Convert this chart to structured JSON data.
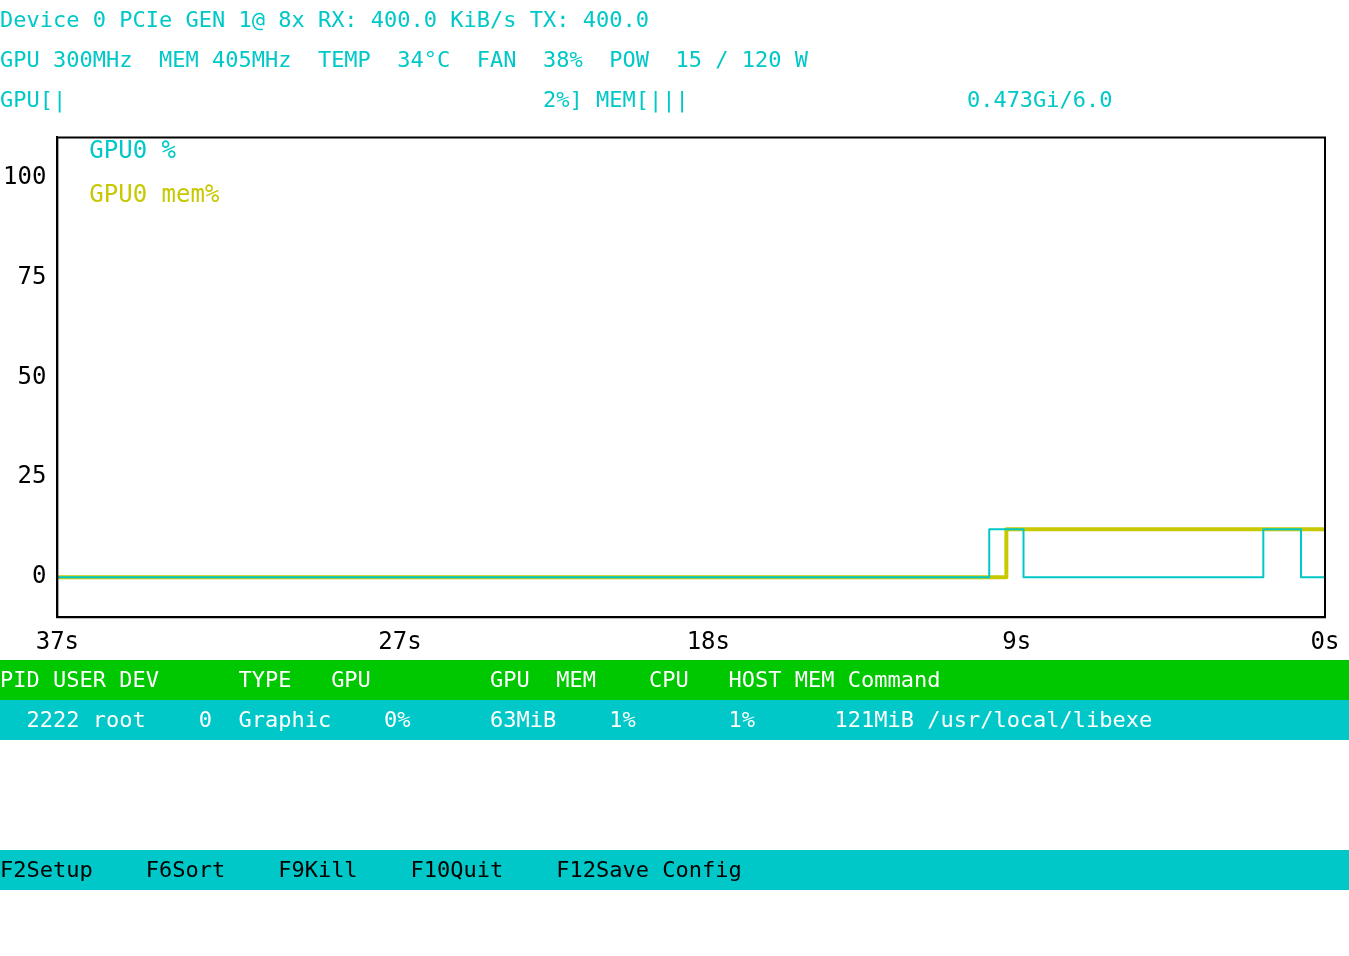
{
  "chart_data": {
    "type": "step",
    "title": "Device 0 PCIe GEN 1@ 8x RX: 400.0 KiB/s TX: 400.0",
    "annotations": [
      "GPU 300MHz  MEM 405MHz  TEMP  34°C  FAN  38%  POW  15 / 120 W",
      "GPU[|                                    2%] MEM[|||                     0.473Gi/6.0",
      "PID USER DEV      TYPE   GPU         GPU  MEM    CPU   HOST MEM Command",
      "  2222 root    0  Graphic    0%      63MiB    1%       1%      121MiB /usr/local/libexe",
      "F2Setup    F6Sort    F9Kill    F10Quit    F12Save Config"
    ],
    "series": [
      {
        "name": "GPU0 %",
        "color": "#00c8c8",
        "x": [
          37,
          9.8,
          8.8,
          1.8,
          0.7,
          0
        ],
        "values": [
          0,
          12,
          0,
          12,
          0,
          0
        ]
      },
      {
        "name": "GPU0 mem%",
        "color": "#c8c800",
        "x": [
          37,
          9.3,
          0
        ],
        "values": [
          0,
          12,
          12
        ]
      }
    ],
    "xlim": [
      37,
      0
    ],
    "xticks": [
      {
        "value": 37,
        "label": "37s"
      },
      {
        "value": 27,
        "label": "27s"
      },
      {
        "value": 18,
        "label": "18s"
      },
      {
        "value": 9,
        "label": "9s"
      },
      {
        "value": 0,
        "label": "0s"
      }
    ],
    "ylim": [
      -10,
      110
    ],
    "yticks": [
      0,
      25,
      50,
      75,
      100
    ],
    "grid": false,
    "legend": "top left",
    "marker": "none",
    "line_style": "solid"
  }
}
